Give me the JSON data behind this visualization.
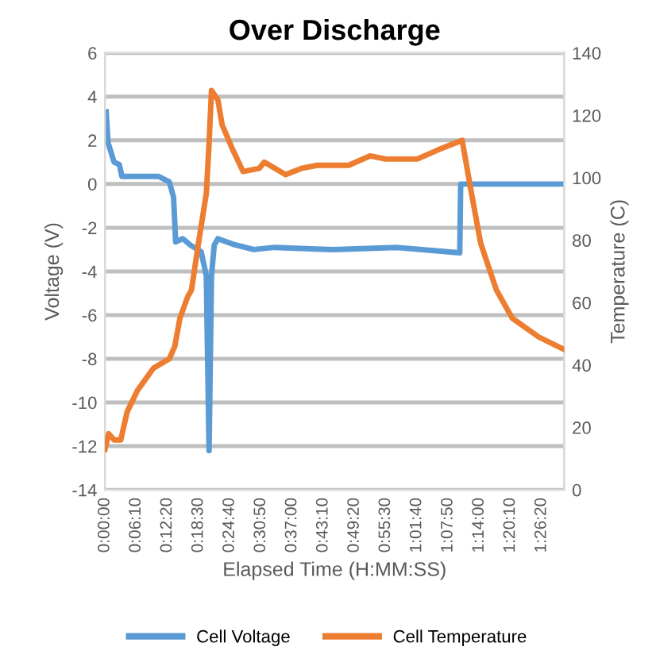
{
  "chart_data": {
    "type": "line",
    "title": "Over Discharge",
    "xlabel": "Elapsed Time (H:MM:SS)",
    "ylabel": "Voltage (V)",
    "y2label": "Temperature (C)",
    "xlim": [
      0,
      1.513
    ],
    "ylim": [
      -14,
      6
    ],
    "yticks": [
      -14,
      -12,
      -10,
      -8,
      -6,
      -4,
      -2,
      0,
      2,
      4,
      6
    ],
    "y2lim": [
      0,
      140
    ],
    "y2ticks": [
      0,
      20,
      40,
      60,
      80,
      100,
      120,
      140
    ],
    "xticks": [
      {
        "value": 0,
        "label": "0:00:00"
      },
      {
        "value": 0.1028,
        "label": "0:06:10"
      },
      {
        "value": 0.2056,
        "label": "0:12:20"
      },
      {
        "value": 0.3083,
        "label": "0:18:30"
      },
      {
        "value": 0.4111,
        "label": "0:24:40"
      },
      {
        "value": 0.5139,
        "label": "0:30:50"
      },
      {
        "value": 0.6167,
        "label": "0:37:00"
      },
      {
        "value": 0.7194,
        "label": "0:43:10"
      },
      {
        "value": 0.8222,
        "label": "0:49:20"
      },
      {
        "value": 0.925,
        "label": "0:55:30"
      },
      {
        "value": 1.0278,
        "label": "1:01:40"
      },
      {
        "value": 1.1306,
        "label": "1:07:50"
      },
      {
        "value": 1.2333,
        "label": "1:14:00"
      },
      {
        "value": 1.3361,
        "label": "1:20:10"
      },
      {
        "value": 1.4389,
        "label": "1:26:20"
      }
    ],
    "grid": "y",
    "legend": "bottom",
    "marker": "none",
    "line_style": "solid",
    "series": [
      {
        "name": "Cell Voltage",
        "color": "#5b9bd5",
        "x": [
          0.004,
          0.01,
          0.03,
          0.047,
          0.056,
          0.177,
          0.212,
          0.226,
          0.233,
          0.256,
          0.282,
          0.317,
          0.334,
          0.343,
          0.351,
          0.36,
          0.372,
          0.421,
          0.49,
          0.558,
          0.751,
          0.96,
          1.169,
          1.172,
          1.513
        ],
        "values": [
          3.3,
          1.9,
          1.0,
          0.9,
          0.35,
          0.35,
          0.1,
          -0.6,
          -2.65,
          -2.5,
          -2.8,
          -3.1,
          -4.2,
          -12.2,
          -4.2,
          -2.8,
          -2.5,
          -2.75,
          -3.0,
          -2.9,
          -3.0,
          -2.9,
          -3.15,
          0,
          0
        ]
      },
      {
        "name": "Cell Temperature",
        "color": "#ed7d31",
        "axis": "y2",
        "x": [
          0,
          0.012,
          0.03,
          0.052,
          0.073,
          0.108,
          0.16,
          0.212,
          0.23,
          0.247,
          0.273,
          0.285,
          0.308,
          0.334,
          0.343,
          0.351,
          0.372,
          0.386,
          0.421,
          0.455,
          0.508,
          0.525,
          0.595,
          0.647,
          0.699,
          0.803,
          0.873,
          0.925,
          1.029,
          1.099,
          1.177,
          1.204,
          1.238,
          1.29,
          1.342,
          1.429,
          1.513
        ],
        "values": [
          13,
          18,
          16,
          16,
          25,
          32,
          39,
          42,
          46,
          55,
          62,
          64,
          79,
          95,
          111,
          128,
          125,
          117,
          109,
          102,
          103,
          105,
          101,
          103,
          104,
          104,
          107,
          106,
          106,
          109,
          112,
          97,
          79,
          64,
          55,
          49,
          45
        ]
      }
    ]
  }
}
